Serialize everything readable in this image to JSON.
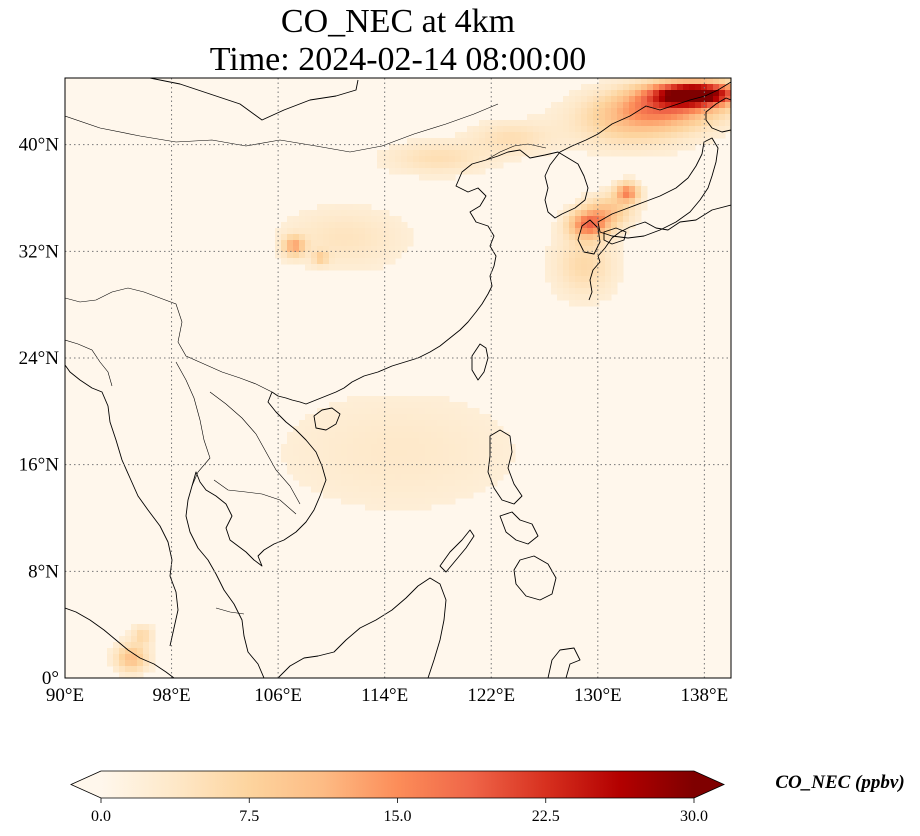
{
  "title": {
    "line1": "CO_NEC at 4km",
    "line2": "Time: 2024-02-14 08:00:00"
  },
  "map": {
    "type": "heatmap",
    "variable": "CO_NEC",
    "level": "4km",
    "time": "2024-02-14 08:00:00",
    "lon_range": [
      90,
      140
    ],
    "lat_range": [
      0,
      45
    ],
    "lon_ticks": [
      90,
      98,
      106,
      114,
      122,
      130,
      138
    ],
    "lat_ticks": [
      0,
      8,
      16,
      24,
      32,
      40
    ],
    "lon_tick_labels": [
      "90°E",
      "98°E",
      "106°E",
      "114°E",
      "122°E",
      "130°E",
      "138°E"
    ],
    "lat_tick_labels": [
      "0°",
      "8°N",
      "16°N",
      "24°N",
      "32°N",
      "40°N"
    ],
    "gridlines": "dotted",
    "background_value_ppbv": 1.5,
    "hotspots": [
      {
        "lon": 137.3,
        "lat": 43.8,
        "value": 31,
        "sx": 2.2,
        "sy": 0.6
      },
      {
        "lon": 135.0,
        "lat": 42.8,
        "value": 13,
        "sx": 3.0,
        "sy": 1.0
      },
      {
        "lon": 132.5,
        "lat": 41.5,
        "value": 6,
        "sx": 3.0,
        "sy": 1.2
      },
      {
        "lon": 129.3,
        "lat": 34.0,
        "value": 15,
        "sx": 1.0,
        "sy": 0.7
      },
      {
        "lon": 132.2,
        "lat": 36.4,
        "value": 14,
        "sx": 0.6,
        "sy": 0.5
      },
      {
        "lon": 130.8,
        "lat": 35.0,
        "value": 8,
        "sx": 1.2,
        "sy": 0.8
      },
      {
        "lon": 129.0,
        "lat": 31.0,
        "value": 5,
        "sx": 1.5,
        "sy": 1.6
      },
      {
        "lon": 107.2,
        "lat": 32.4,
        "value": 11,
        "sx": 0.55,
        "sy": 0.5
      },
      {
        "lon": 109.2,
        "lat": 31.5,
        "value": 6,
        "sx": 0.4,
        "sy": 0.35
      },
      {
        "lon": 111.0,
        "lat": 33.0,
        "value": 3,
        "sx": 3.0,
        "sy": 1.5
      },
      {
        "lon": 95.0,
        "lat": 1.5,
        "value": 9,
        "sx": 0.8,
        "sy": 0.7
      },
      {
        "lon": 95.8,
        "lat": 3.2,
        "value": 5,
        "sx": 0.5,
        "sy": 0.5
      },
      {
        "lon": 118.0,
        "lat": 39.0,
        "value": 4,
        "sx": 2.5,
        "sy": 0.8
      },
      {
        "lon": 123.5,
        "lat": 40.5,
        "value": 4,
        "sx": 2.0,
        "sy": 0.8
      },
      {
        "lon": 115.0,
        "lat": 17.0,
        "value": 2,
        "sx": 6.0,
        "sy": 3.0
      }
    ]
  },
  "colorbar": {
    "label": "CO_NEC (ppbv)",
    "min": 0.0,
    "max": 30.0,
    "extend": "both",
    "ticks": [
      0.0,
      7.5,
      15.0,
      22.5,
      30.0
    ],
    "tick_labels": [
      "0.0",
      "7.5",
      "15.0",
      "22.5",
      "30.0"
    ],
    "colormap": "OrRd",
    "colors": [
      "#fff7ec",
      "#fee8c8",
      "#fdd49e",
      "#fdbb84",
      "#fc8d59",
      "#ef6548",
      "#d7301f",
      "#b30000",
      "#7f0000"
    ]
  }
}
